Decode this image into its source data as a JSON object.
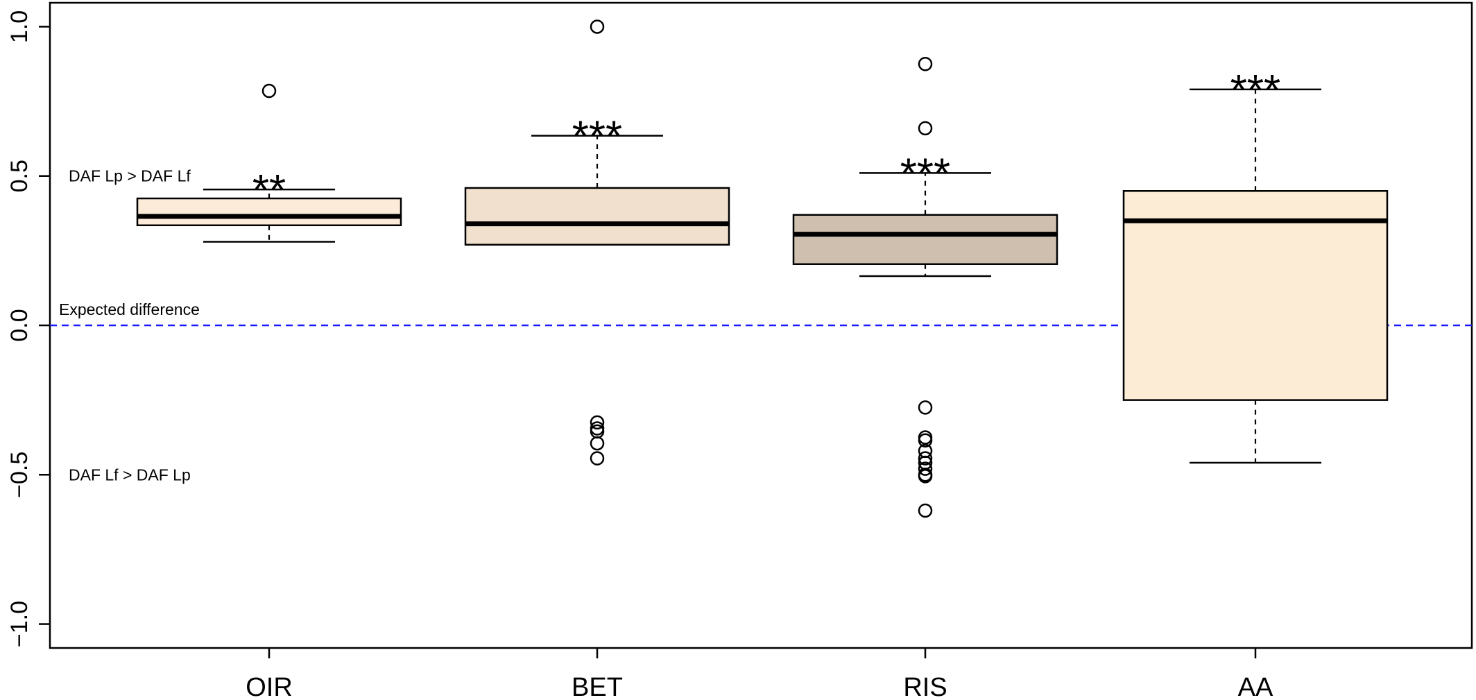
{
  "chart_data": {
    "type": "box",
    "categories": [
      "OIR",
      "BET",
      "RIS",
      "AA"
    ],
    "ylim": [
      -1.08,
      1.08
    ],
    "yticks": [
      -1.0,
      -0.5,
      0.0,
      0.5,
      1.0
    ],
    "ytick_labels": [
      "−1.0",
      "−0.5",
      "0.0",
      "0.5",
      "1.0"
    ],
    "grid": false,
    "reference_line": {
      "y": 0.0,
      "label": "Expected difference",
      "color": "#1a1aff",
      "style": "dashed"
    },
    "region_labels": [
      {
        "text": "DAF Lp > DAF Lf",
        "y": 0.5
      },
      {
        "text": "DAF Lf > DAF Lp",
        "y": -0.5
      }
    ],
    "boxes": [
      {
        "category": "OIR",
        "whisker_low": 0.28,
        "q1": 0.335,
        "median": 0.365,
        "q3": 0.425,
        "whisker_high": 0.455,
        "outliers": [
          0.785
        ],
        "significance": "**",
        "fill": "#fcebd8"
      },
      {
        "category": "BET",
        "whisker_low": 0.27,
        "q1": 0.27,
        "median": 0.34,
        "q3": 0.46,
        "whisker_high": 0.635,
        "outliers": [
          1.0,
          -0.325,
          -0.345,
          -0.355,
          -0.395,
          -0.445
        ],
        "significance": "***",
        "fill": "#f0e0cd"
      },
      {
        "category": "RIS",
        "whisker_low": 0.165,
        "q1": 0.205,
        "median": 0.305,
        "q3": 0.37,
        "whisker_high": 0.51,
        "outliers": [
          0.875,
          0.66,
          -0.275,
          -0.375,
          -0.385,
          -0.42,
          -0.445,
          -0.46,
          -0.48,
          -0.5,
          -0.505,
          -0.62
        ],
        "significance": "***",
        "fill": "#cfbfae"
      },
      {
        "category": "AA",
        "whisker_low": -0.46,
        "q1": -0.25,
        "median": 0.35,
        "q3": 0.45,
        "whisker_high": 0.79,
        "outliers": [],
        "significance": "***",
        "fill": "#fcebd5"
      }
    ]
  }
}
